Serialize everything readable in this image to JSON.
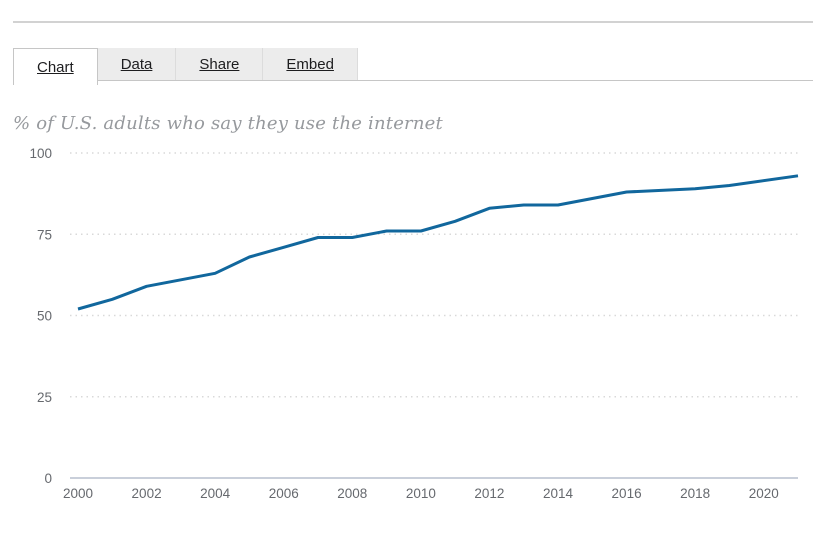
{
  "widget": {
    "tabs": [
      {
        "label": "Chart",
        "active": true
      },
      {
        "label": "Data",
        "active": false
      },
      {
        "label": "Share",
        "active": false
      },
      {
        "label": "Embed",
        "active": false
      }
    ]
  },
  "chart_data": {
    "type": "line",
    "title": "% of U.S. adults who say they use the internet",
    "x": [
      2000,
      2001,
      2002,
      2003,
      2004,
      2005,
      2006,
      2007,
      2008,
      2009,
      2010,
      2011,
      2012,
      2013,
      2014,
      2015,
      2016,
      2018,
      2019,
      2021
    ],
    "series": [
      {
        "name": "% of U.S. adults who say they use the internet",
        "values": [
          52,
          55,
          59,
          61,
          63,
          68,
          71,
          74,
          74,
          76,
          76,
          79,
          83,
          84,
          84,
          86,
          88,
          89,
          90,
          93
        ]
      }
    ],
    "xlabel": "",
    "ylabel": "",
    "xlim": [
      2000,
      2021
    ],
    "ylim": [
      0,
      100
    ],
    "yticks": [
      100,
      75,
      50,
      25,
      0
    ],
    "xticks": [
      2000,
      2002,
      2004,
      2006,
      2008,
      2010,
      2012,
      2014,
      2016,
      2018,
      2020
    ],
    "grid": "horizontal-dotted",
    "legend": "none"
  },
  "colors": {
    "line": "#11679d",
    "axis_line": "#c9cfda",
    "gridline": "#d9d9d9",
    "tick_label": "#66696e",
    "title_text": "#96999d",
    "tab_bg": "#ececec",
    "tab_border": "#c6c6c6",
    "tab_text": "#1d1d1f"
  }
}
